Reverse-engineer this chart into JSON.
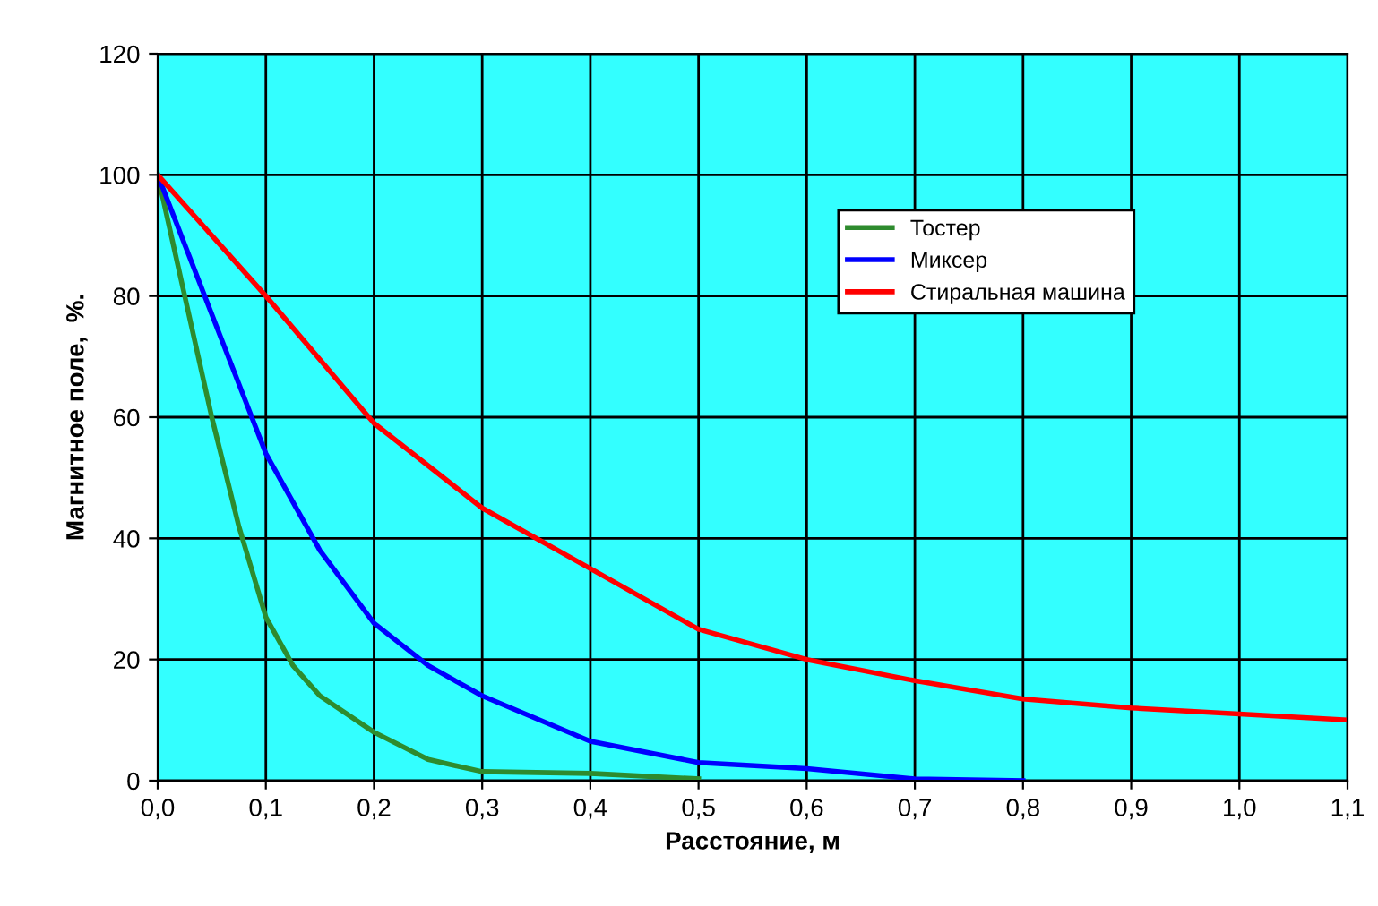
{
  "chart_data": {
    "type": "line",
    "xlabel": "Расстояние, м",
    "ylabel": "Магнитное поле,  %.",
    "series": [
      {
        "name": "Тостер",
        "color": "#2e8b2e",
        "x": [
          0,
          0.025,
          0.05,
          0.075,
          0.1,
          0.125,
          0.15,
          0.2,
          0.25,
          0.3,
          0.4,
          0.5
        ],
        "values": [
          100,
          80,
          60,
          42,
          27,
          19,
          14,
          8,
          3.5,
          1.5,
          1.2,
          0.3
        ]
      },
      {
        "name": "Миксер",
        "color": "#0000ff",
        "x": [
          0,
          0.05,
          0.1,
          0.15,
          0.2,
          0.25,
          0.3,
          0.4,
          0.5,
          0.6,
          0.7,
          0.8
        ],
        "values": [
          100,
          77,
          54,
          38,
          26,
          19,
          14,
          6.5,
          3,
          2,
          0.3,
          0
        ]
      },
      {
        "name": "Стиральная машина",
        "color": "#ff0000",
        "x": [
          0,
          0.1,
          0.2,
          0.3,
          0.4,
          0.5,
          0.6,
          0.7,
          0.8,
          0.9,
          1.0,
          1.1
        ],
        "values": [
          100,
          80,
          59,
          45,
          35,
          25,
          20,
          16.5,
          13.5,
          12,
          11,
          10
        ]
      }
    ],
    "xlim": [
      0,
      1.1
    ],
    "ylim": [
      0,
      120
    ],
    "xticks": [
      {
        "value": 0,
        "label": "0,0"
      },
      {
        "value": 0.1,
        "label": "0,1"
      },
      {
        "value": 0.2,
        "label": "0,2"
      },
      {
        "value": 0.3,
        "label": "0,3"
      },
      {
        "value": 0.4,
        "label": "0,4"
      },
      {
        "value": 0.5,
        "label": "0,5"
      },
      {
        "value": 0.6,
        "label": "0,6"
      },
      {
        "value": 0.7,
        "label": "0,7"
      },
      {
        "value": 0.8,
        "label": "0,8"
      },
      {
        "value": 0.9,
        "label": "0,9"
      },
      {
        "value": 1.0,
        "label": "1,0"
      },
      {
        "value": 1.1,
        "label": "1,1"
      }
    ],
    "yticks": [
      0,
      20,
      40,
      60,
      80,
      100,
      120
    ],
    "grid": true,
    "legend": "top right",
    "marker": "none",
    "line_style": "solid"
  }
}
